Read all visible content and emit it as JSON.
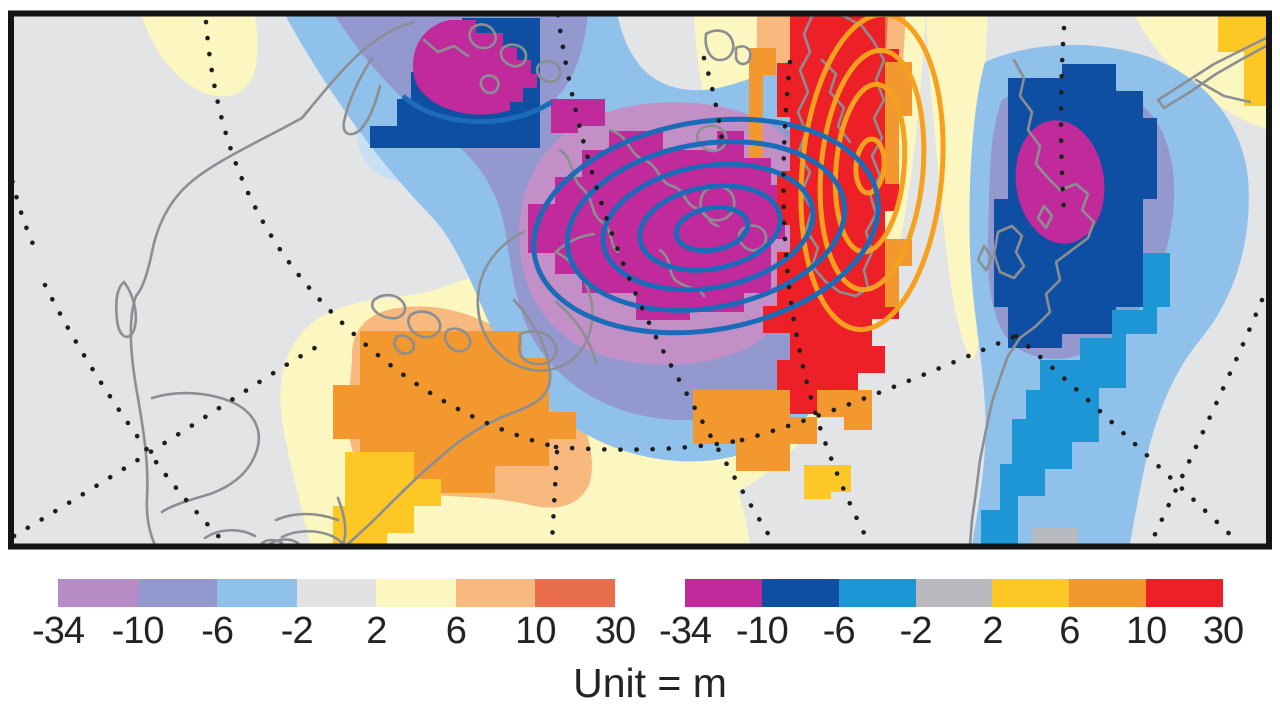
{
  "figure": {
    "unit_label": "Unit = m",
    "type": "filled-contour anomaly map with two color scales and contour lines"
  },
  "colorbars": {
    "left": {
      "name": "muted-scale-shaded-field",
      "ticks": [
        "-34",
        "-10",
        "-6",
        "-2",
        "2",
        "6",
        "10",
        "30"
      ],
      "colors": [
        "#b78cc6",
        "#9399cf",
        "#90c1ea",
        "#e2e2e4",
        "#fcf6c0",
        "#f8b97e",
        "#e96e4b"
      ]
    },
    "right": {
      "name": "saturated-scale-gridded-field",
      "ticks": [
        "-34",
        "-10",
        "-6",
        "-2",
        "2",
        "6",
        "10",
        "30"
      ],
      "colors": [
        "#c12a9b",
        "#0f4fa3",
        "#1e96d5",
        "#b8babf",
        "#fdc826",
        "#f2982e",
        "#ec2026"
      ]
    }
  },
  "map": {
    "background_color": "#e3e4e5",
    "coastline_color": "#8b8f93",
    "graticule_style": "dotted black",
    "frame_color": "#141414",
    "contour_lines": {
      "negative_center_color": "#1a6cb8",
      "negative_center_rings": 5,
      "positive_center_color": "#f6a01f",
      "positive_center_rings": 4
    },
    "features": [
      "strong negative anomaly with closed blue contours over Arctic Canada",
      "strong positive anomaly band with closed orange contours over Greenland/Atlantic",
      "negative anomaly cell over northern Europe",
      "positive anomaly over eastern North America",
      "negative anomaly cell over Kamchatka/Okhotsk region"
    ]
  }
}
